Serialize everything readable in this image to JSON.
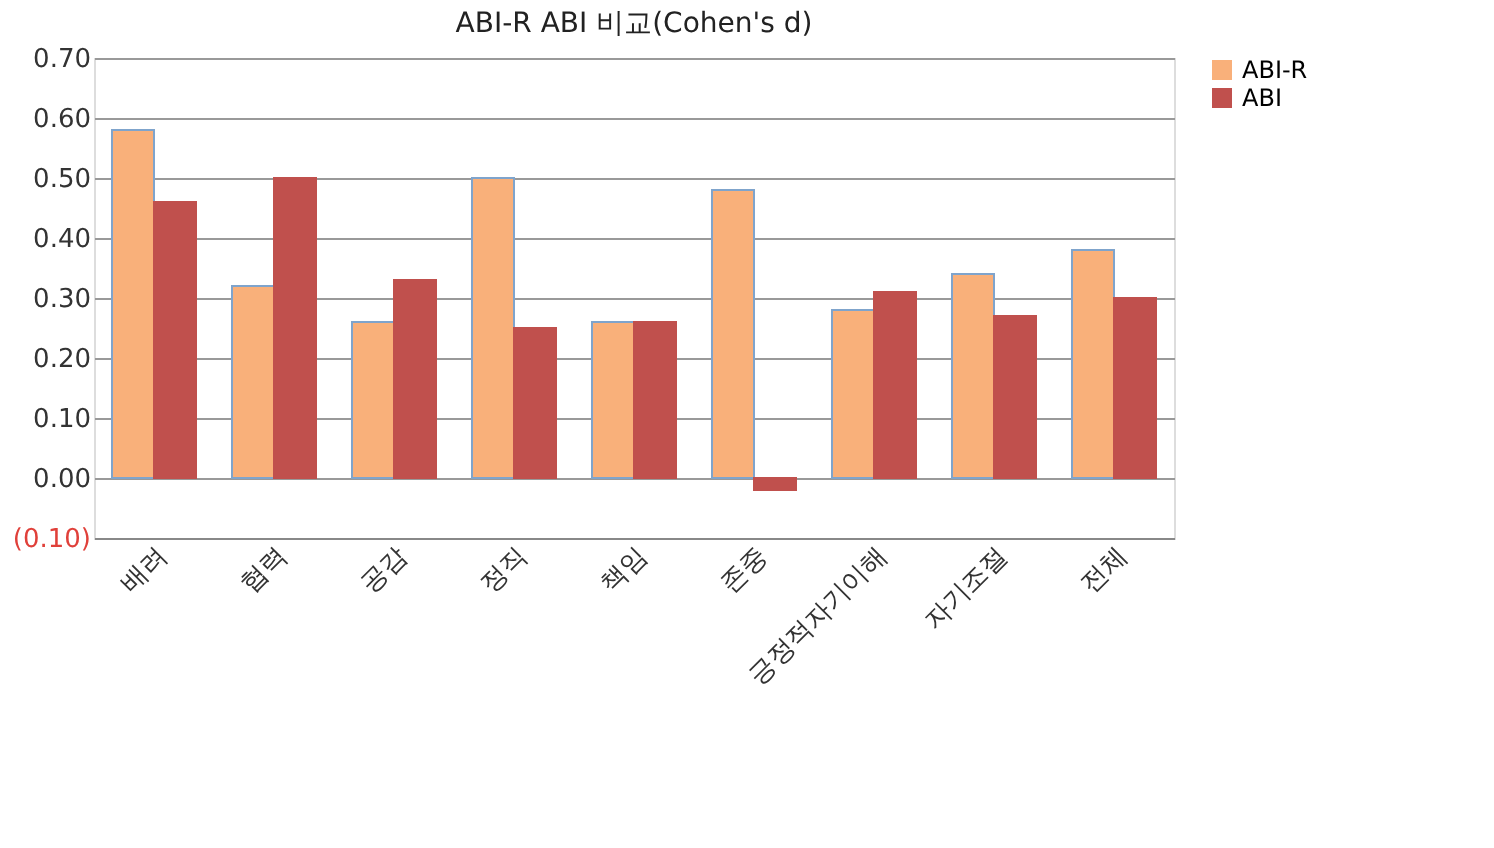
{
  "chart_data": {
    "type": "bar",
    "title": "ABI-R  ABI 비교(Cohen's d)",
    "categories": [
      "배려",
      "협력",
      "공감",
      "정직",
      "책임",
      "존중",
      "긍정적자기이해",
      "자기조절",
      "전체"
    ],
    "series": [
      {
        "name": "ABI-R",
        "color": "#f9b07a",
        "values": [
          0.58,
          0.32,
          0.26,
          0.5,
          0.26,
          0.48,
          0.28,
          0.34,
          0.38
        ]
      },
      {
        "name": "ABI",
        "color": "#c0504d",
        "values": [
          0.46,
          0.5,
          0.33,
          0.25,
          0.26,
          -0.02,
          0.31,
          0.27,
          0.3
        ]
      }
    ],
    "ylim": [
      -0.1,
      0.7
    ],
    "yticks": [
      {
        "value": -0.1,
        "label": "(0.10)"
      },
      {
        "value": 0,
        "label": "0.00"
      },
      {
        "value": 0.1,
        "label": "0.10"
      },
      {
        "value": 0.2,
        "label": "0.20"
      },
      {
        "value": 0.3,
        "label": "0.30"
      },
      {
        "value": 0.4,
        "label": "0.40"
      },
      {
        "value": 0.5,
        "label": "0.50"
      },
      {
        "value": 0.6,
        "label": "0.60"
      },
      {
        "value": 0.7,
        "label": "0.70"
      }
    ],
    "grid": "y",
    "legend": "right"
  }
}
